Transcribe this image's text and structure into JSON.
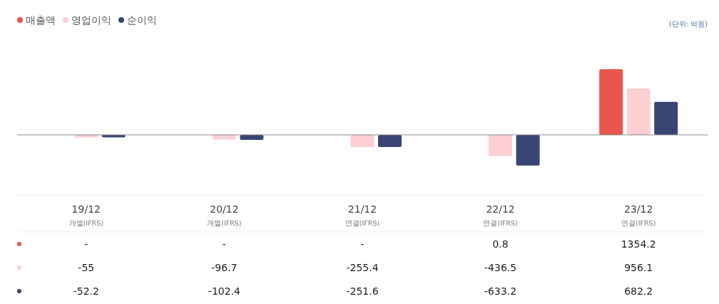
{
  "chart_data": {
    "type": "bar",
    "annotations": [
      "(단위: 억원)"
    ],
    "categories": [
      "19/12\n개별(IFRS)",
      "20/12\n개별(IFRS)",
      "21/12\n연결(IFRS)",
      "22/12\n연결(IFRS)",
      "23/12\n연결(IFRS)"
    ],
    "series": [
      {
        "name": "매출액",
        "color": "#e8564c",
        "values": [
          null,
          null,
          null,
          0.8,
          1354.2
        ],
        "value_labels": [
          "-",
          "-",
          "-",
          "0.8",
          "1354.2"
        ]
      },
      {
        "name": "영업이익",
        "color": "#fccfd3",
        "values": [
          -55,
          -96.7,
          -255.4,
          -436.5,
          956.1
        ],
        "value_labels": [
          "-55",
          "-96.7",
          "-255.4",
          "-436.5",
          "956.1"
        ]
      },
      {
        "name": "순이익",
        "color": "#394573",
        "values": [
          -52.2,
          -102.4,
          -251.6,
          -633.2,
          682.2
        ],
        "value_labels": [
          "-52.2",
          "-102.4",
          "-251.6",
          "-633.2",
          "682.2"
        ]
      }
    ],
    "legend": "top left",
    "grid": false
  }
}
